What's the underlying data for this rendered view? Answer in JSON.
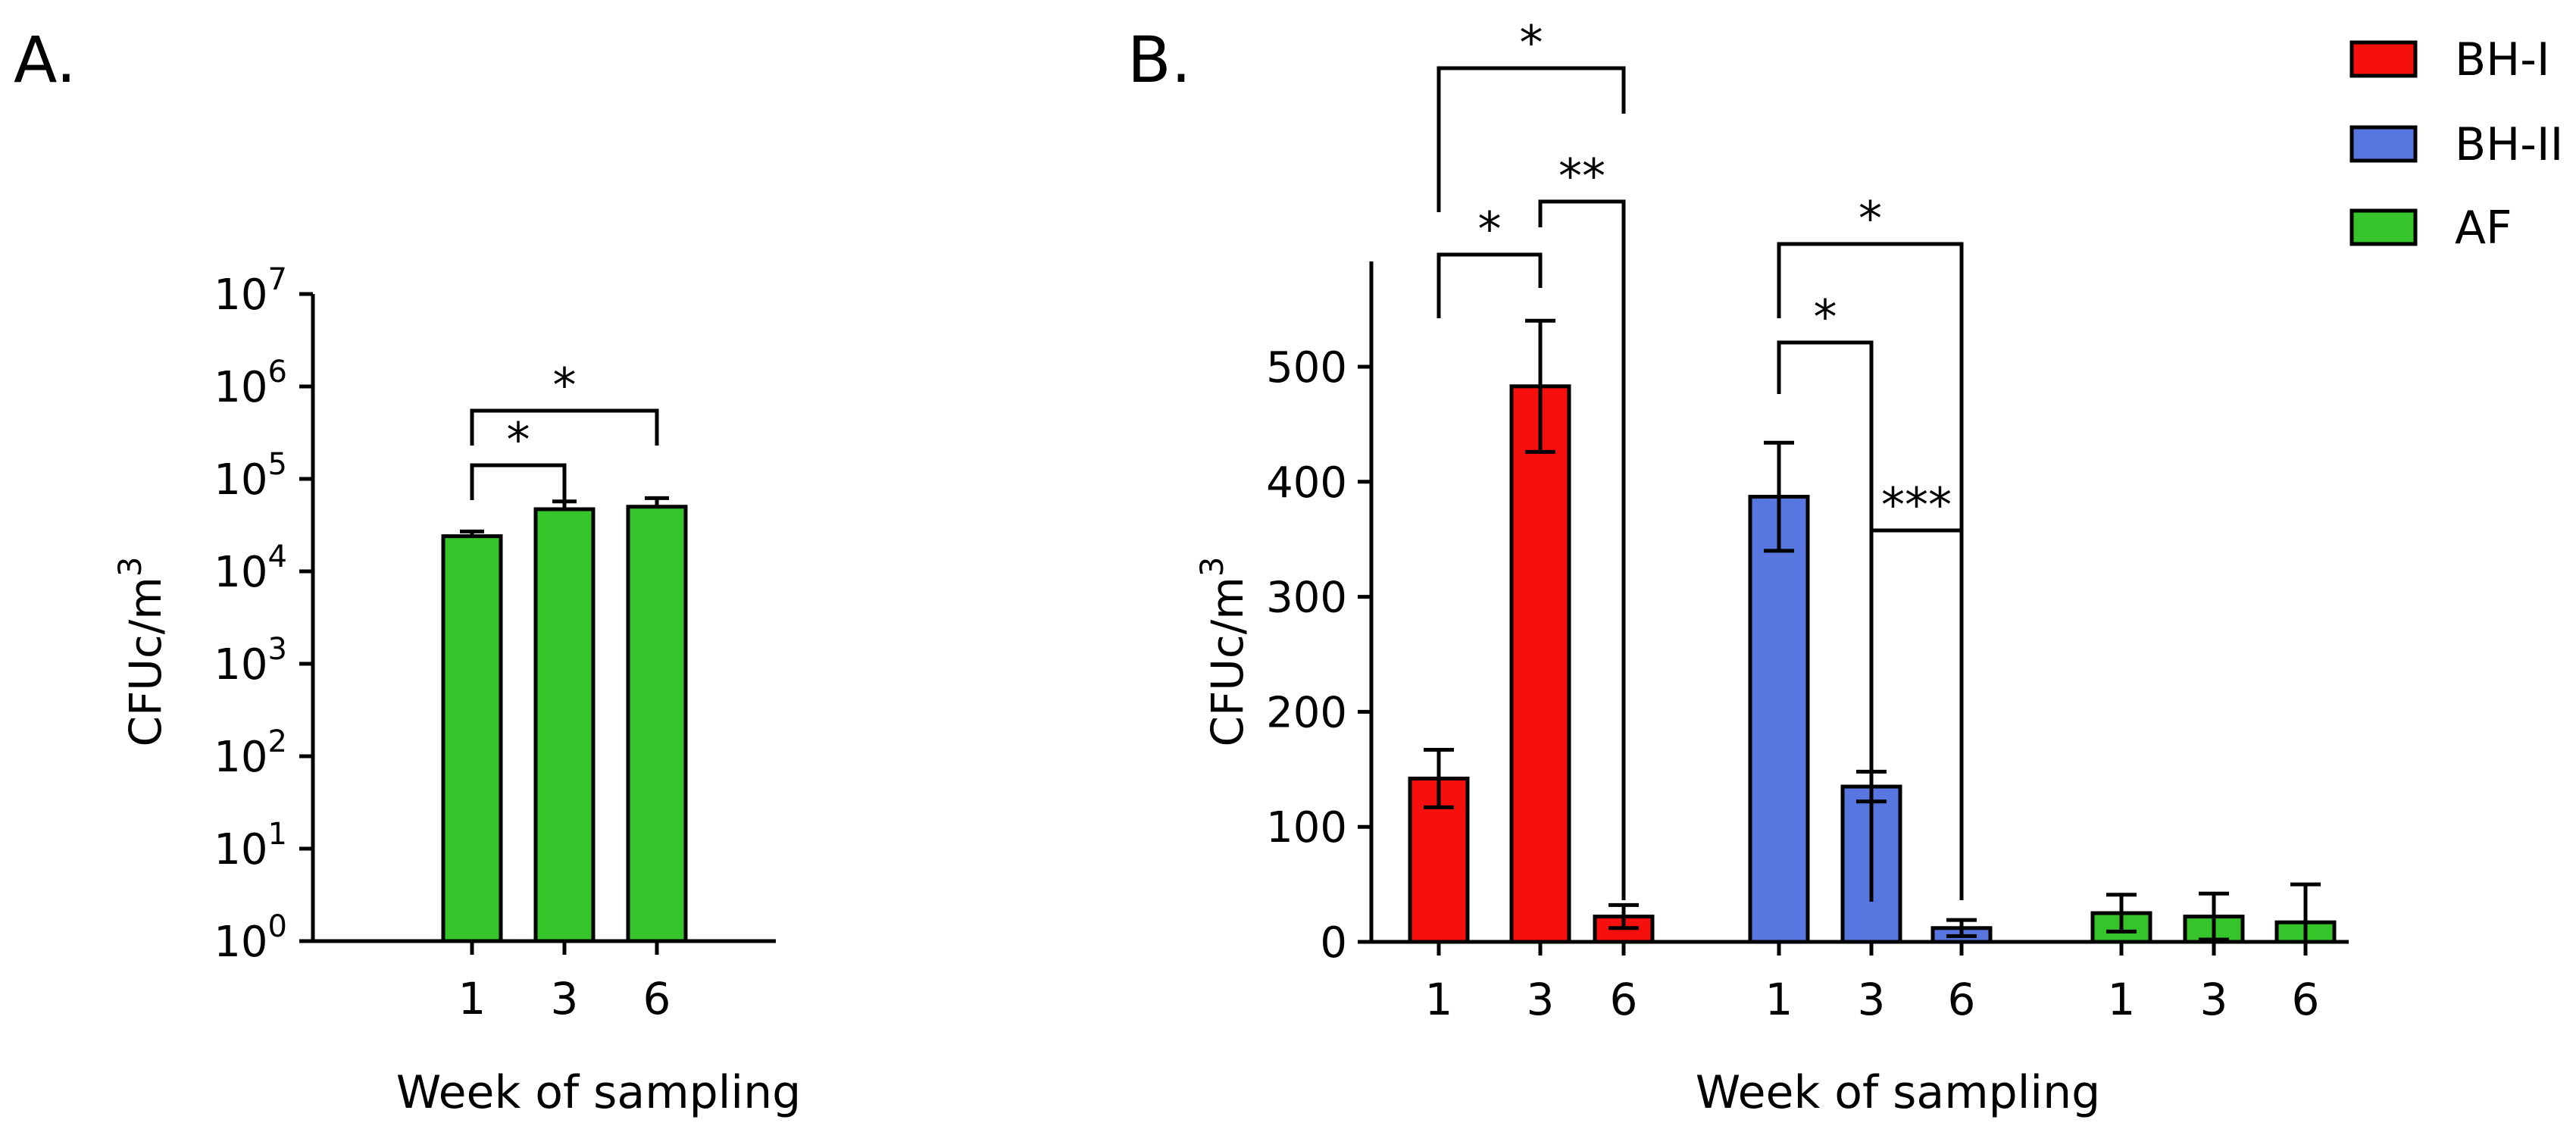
{
  "panel_a": {
    "label": "A.",
    "chart_data": {
      "type": "bar",
      "yscale": "log",
      "ylabel": "CFUc/m",
      "ylabel_sup": "3",
      "xlabel": "Week of sampling",
      "categories": [
        "1",
        "3",
        "6"
      ],
      "values": [
        24000,
        47000,
        50000
      ],
      "errors": [
        3000,
        10000,
        12000
      ],
      "ylim": [
        1,
        10000000
      ],
      "ytick_base": "10",
      "ytick_exps": [
        "0",
        "1",
        "2",
        "3",
        "4",
        "5",
        "6",
        "7"
      ],
      "color": "#35C52A",
      "significance": [
        {
          "from": 0,
          "to": 1,
          "label": "*"
        },
        {
          "from": 0,
          "to": 2,
          "label": "*"
        }
      ]
    }
  },
  "panel_b": {
    "label": "B.",
    "chart_data": {
      "type": "bar",
      "ylabel": "CFUc/m",
      "ylabel_sup": "3",
      "xlabel": "Week of sampling",
      "categories": [
        "1",
        "3",
        "6"
      ],
      "ylim": [
        0,
        580
      ],
      "yticks": [
        "0",
        "100",
        "200",
        "300",
        "400",
        "500"
      ],
      "series": [
        {
          "name": "BH-I",
          "color": "#F5100E",
          "values": [
            142,
            483,
            22
          ],
          "errors": [
            25,
            57,
            10
          ]
        },
        {
          "name": "BH-II",
          "color": "#5876E0",
          "values": [
            387,
            135,
            12
          ],
          "errors": [
            47,
            13,
            7
          ]
        },
        {
          "name": "AF",
          "color": "#35C52A",
          "values": [
            25,
            22,
            17
          ],
          "errors": [
            16,
            20,
            33
          ]
        }
      ],
      "significance": [
        {
          "series": 0,
          "from": 0,
          "to": 2,
          "label": "*"
        },
        {
          "series": 0,
          "from": 0,
          "to": 1,
          "label": "*"
        },
        {
          "series": 0,
          "from": 1,
          "to": 2,
          "label": "**"
        },
        {
          "series": 1,
          "from": 0,
          "to": 2,
          "label": "*"
        },
        {
          "series": 1,
          "from": 0,
          "to": 1,
          "label": "*"
        },
        {
          "series": 1,
          "from": 1,
          "to": 2,
          "label": "***"
        }
      ]
    }
  }
}
